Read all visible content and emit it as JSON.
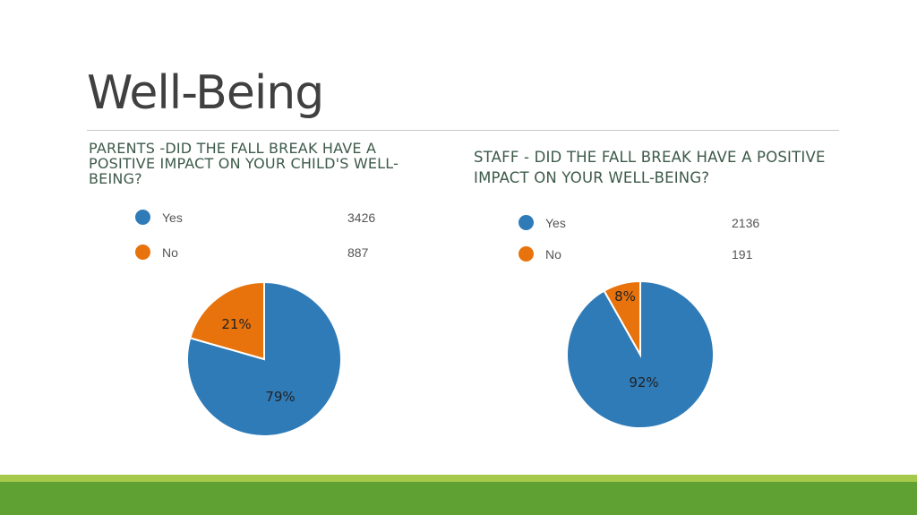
{
  "slide": {
    "title": "Well-Being"
  },
  "chart_data": [
    {
      "type": "pie",
      "title": "PARENTS -DID THE FALL BREAK HAVE A POSITIVE IMPACT ON YOUR CHILD'S WELL-BEING?",
      "categories": [
        "Yes",
        "No"
      ],
      "values": [
        3426,
        887
      ],
      "percent_labels": [
        "79%",
        "21%"
      ],
      "colors": [
        "#2f7bb8",
        "#e8730c"
      ],
      "legend": "top"
    },
    {
      "type": "pie",
      "title": "STAFF - DID THE FALL BREAK HAVE A POSITIVE IMPACT ON YOUR WELL-BEING?",
      "categories": [
        "Yes",
        "No"
      ],
      "values": [
        2136,
        191
      ],
      "percent_labels": [
        "92%",
        "8%"
      ],
      "colors": [
        "#2f7bb8",
        "#e8730c"
      ],
      "legend": "top"
    }
  ]
}
